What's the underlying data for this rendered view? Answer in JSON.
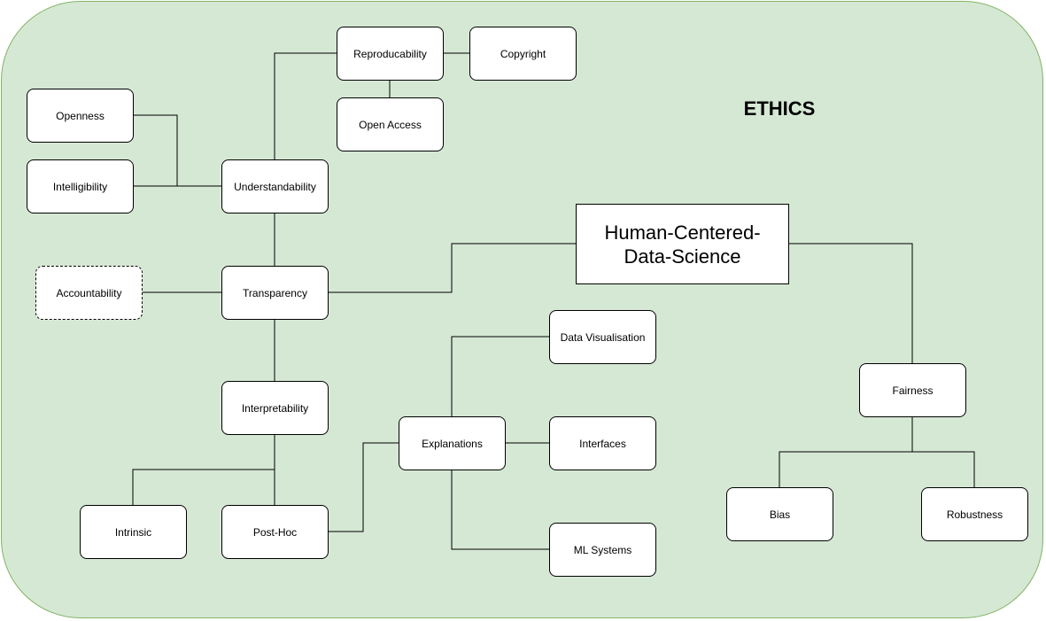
{
  "title": "ETHICS",
  "nodes": {
    "reproducability": "Reproducability",
    "copyright": "Copyright",
    "open_access": "Open Access",
    "openness": "Openness",
    "intelligibility": "Intelligibility",
    "understandability": "Understandability",
    "accountability": "Accountability",
    "transparency": "Transparency",
    "human_centered": "Human-Centered-Data-Science",
    "data_visualisation": "Data Visualisation",
    "interpretability": "Interpretability",
    "explanations": "Explanations",
    "interfaces": "Interfaces",
    "fairness": "Fairness",
    "intrinsic": "Intrinsic",
    "post_hoc": "Post-Hoc",
    "ml_systems": "ML Systems",
    "bias": "Bias",
    "robustness": "Robustness"
  },
  "colors": {
    "container_fill": "#d5e8d4",
    "container_border": "#82b366",
    "node_fill": "#ffffff",
    "line": "#000000"
  }
}
